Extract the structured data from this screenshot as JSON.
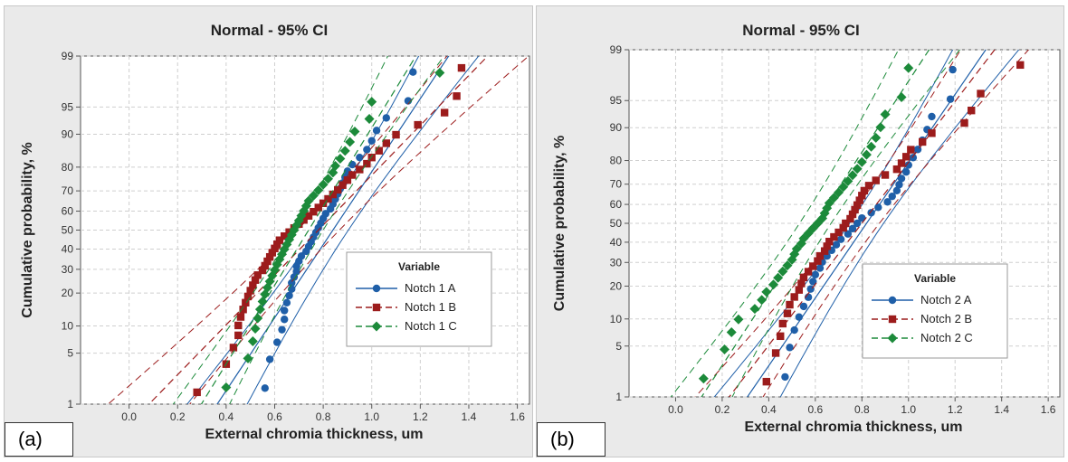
{
  "chart_data": [
    {
      "panel_tag": "(a)",
      "type": "scatter",
      "title": "Normal - 95% CI",
      "xlabel": "External chromia thickness, um",
      "ylabel": "Cumulative probability, %",
      "xlim": [
        -0.2,
        1.65
      ],
      "ylim_percent": [
        1,
        99
      ],
      "y_scale": "normal-probability",
      "x_ticks": [
        "0.0",
        "0.2",
        "0.4",
        "0.6",
        "0.8",
        "1.0",
        "1.2",
        "1.4",
        "1.6"
      ],
      "y_ticks": [
        "1",
        "5",
        "10",
        "20",
        "30",
        "40",
        "50",
        "60",
        "70",
        "80",
        "90",
        "95",
        "99"
      ],
      "grid": true,
      "legend_title": "Variable",
      "legend_position": "right",
      "series": [
        {
          "name": "Notch 1 A",
          "color": "#1f5fa8",
          "marker": "circle",
          "line": "solid",
          "x": [
            0.56,
            0.58,
            0.61,
            0.63,
            0.64,
            0.64,
            0.65,
            0.66,
            0.67,
            0.67,
            0.68,
            0.69,
            0.69,
            0.7,
            0.71,
            0.73,
            0.74,
            0.75,
            0.76,
            0.77,
            0.78,
            0.79,
            0.8,
            0.81,
            0.83,
            0.84,
            0.85,
            0.86,
            0.87,
            0.88,
            0.89,
            0.9,
            0.92,
            0.95,
            0.98,
            1.0,
            1.02,
            1.06,
            1.15,
            1.17
          ],
          "mean": 0.84,
          "sd": 0.205
        },
        {
          "name": "Notch 1 B",
          "color": "#9c1c1c",
          "marker": "square",
          "line": "dashed",
          "x": [
            0.28,
            0.4,
            0.43,
            0.45,
            0.45,
            0.46,
            0.47,
            0.48,
            0.49,
            0.5,
            0.51,
            0.52,
            0.53,
            0.55,
            0.56,
            0.57,
            0.58,
            0.59,
            0.6,
            0.61,
            0.62,
            0.64,
            0.66,
            0.68,
            0.7,
            0.72,
            0.74,
            0.76,
            0.78,
            0.8,
            0.82,
            0.84,
            0.86,
            0.88,
            0.9,
            0.92,
            0.95,
            0.98,
            1.0,
            1.03,
            1.06,
            1.1,
            1.19,
            1.3,
            1.35,
            1.37
          ],
          "mean": 0.78,
          "sd": 0.3
        },
        {
          "name": "Notch 1 C",
          "color": "#1c8a3a",
          "marker": "diamond",
          "line": "dashed",
          "x": [
            0.4,
            0.49,
            0.51,
            0.52,
            0.53,
            0.54,
            0.55,
            0.56,
            0.57,
            0.58,
            0.59,
            0.6,
            0.61,
            0.62,
            0.63,
            0.64,
            0.65,
            0.66,
            0.67,
            0.68,
            0.69,
            0.7,
            0.71,
            0.72,
            0.73,
            0.74,
            0.76,
            0.78,
            0.8,
            0.82,
            0.84,
            0.85,
            0.87,
            0.89,
            0.91,
            0.93,
            0.99,
            1.0,
            1.28
          ],
          "mean": 0.74,
          "sd": 0.19
        }
      ]
    },
    {
      "panel_tag": "(b)",
      "type": "scatter",
      "title": "Normal - 95% CI",
      "xlabel": "External chromia thickness, um",
      "ylabel": "Cumulative probability, %",
      "xlim": [
        -0.2,
        1.65
      ],
      "ylim_percent": [
        1,
        99
      ],
      "y_scale": "normal-probability",
      "x_ticks": [
        "0.0",
        "0.2",
        "0.4",
        "0.6",
        "0.8",
        "1.0",
        "1.2",
        "1.4",
        "1.6"
      ],
      "y_ticks": [
        "1",
        "5",
        "10",
        "20",
        "30",
        "40",
        "50",
        "60",
        "70",
        "80",
        "90",
        "95",
        "99"
      ],
      "grid": true,
      "legend_title": "Variable",
      "legend_position": "lower-right",
      "series": [
        {
          "name": "Notch 2 A",
          "color": "#1f5fa8",
          "marker": "circle",
          "line": "solid",
          "x": [
            0.47,
            0.49,
            0.51,
            0.53,
            0.55,
            0.57,
            0.58,
            0.59,
            0.6,
            0.62,
            0.63,
            0.65,
            0.67,
            0.69,
            0.71,
            0.74,
            0.76,
            0.78,
            0.8,
            0.84,
            0.87,
            0.91,
            0.93,
            0.95,
            0.96,
            0.97,
            0.99,
            1.0,
            1.02,
            1.04,
            1.06,
            1.08,
            1.1,
            1.18,
            1.19
          ],
          "mean": 0.82,
          "sd": 0.22
        },
        {
          "name": "Notch 2 B",
          "color": "#9c1c1c",
          "marker": "square",
          "line": "dashed",
          "x": [
            0.39,
            0.43,
            0.45,
            0.46,
            0.48,
            0.49,
            0.51,
            0.53,
            0.54,
            0.55,
            0.57,
            0.59,
            0.61,
            0.62,
            0.64,
            0.65,
            0.66,
            0.68,
            0.7,
            0.72,
            0.73,
            0.75,
            0.76,
            0.77,
            0.78,
            0.79,
            0.8,
            0.81,
            0.83,
            0.86,
            0.9,
            0.95,
            0.97,
            0.99,
            1.01,
            1.06,
            1.1,
            1.24,
            1.27,
            1.31,
            1.48
          ],
          "mean": 0.8,
          "sd": 0.245
        },
        {
          "name": "Notch 2 C",
          "color": "#1c8a3a",
          "marker": "diamond",
          "line": "dashed",
          "x": [
            0.12,
            0.21,
            0.24,
            0.27,
            0.34,
            0.37,
            0.39,
            0.42,
            0.44,
            0.46,
            0.48,
            0.5,
            0.51,
            0.52,
            0.54,
            0.55,
            0.57,
            0.59,
            0.61,
            0.63,
            0.64,
            0.65,
            0.66,
            0.68,
            0.7,
            0.72,
            0.74,
            0.76,
            0.78,
            0.8,
            0.82,
            0.84,
            0.86,
            0.88,
            0.9,
            0.97,
            1.0
          ],
          "mean": 0.6,
          "sd": 0.21
        }
      ]
    }
  ]
}
